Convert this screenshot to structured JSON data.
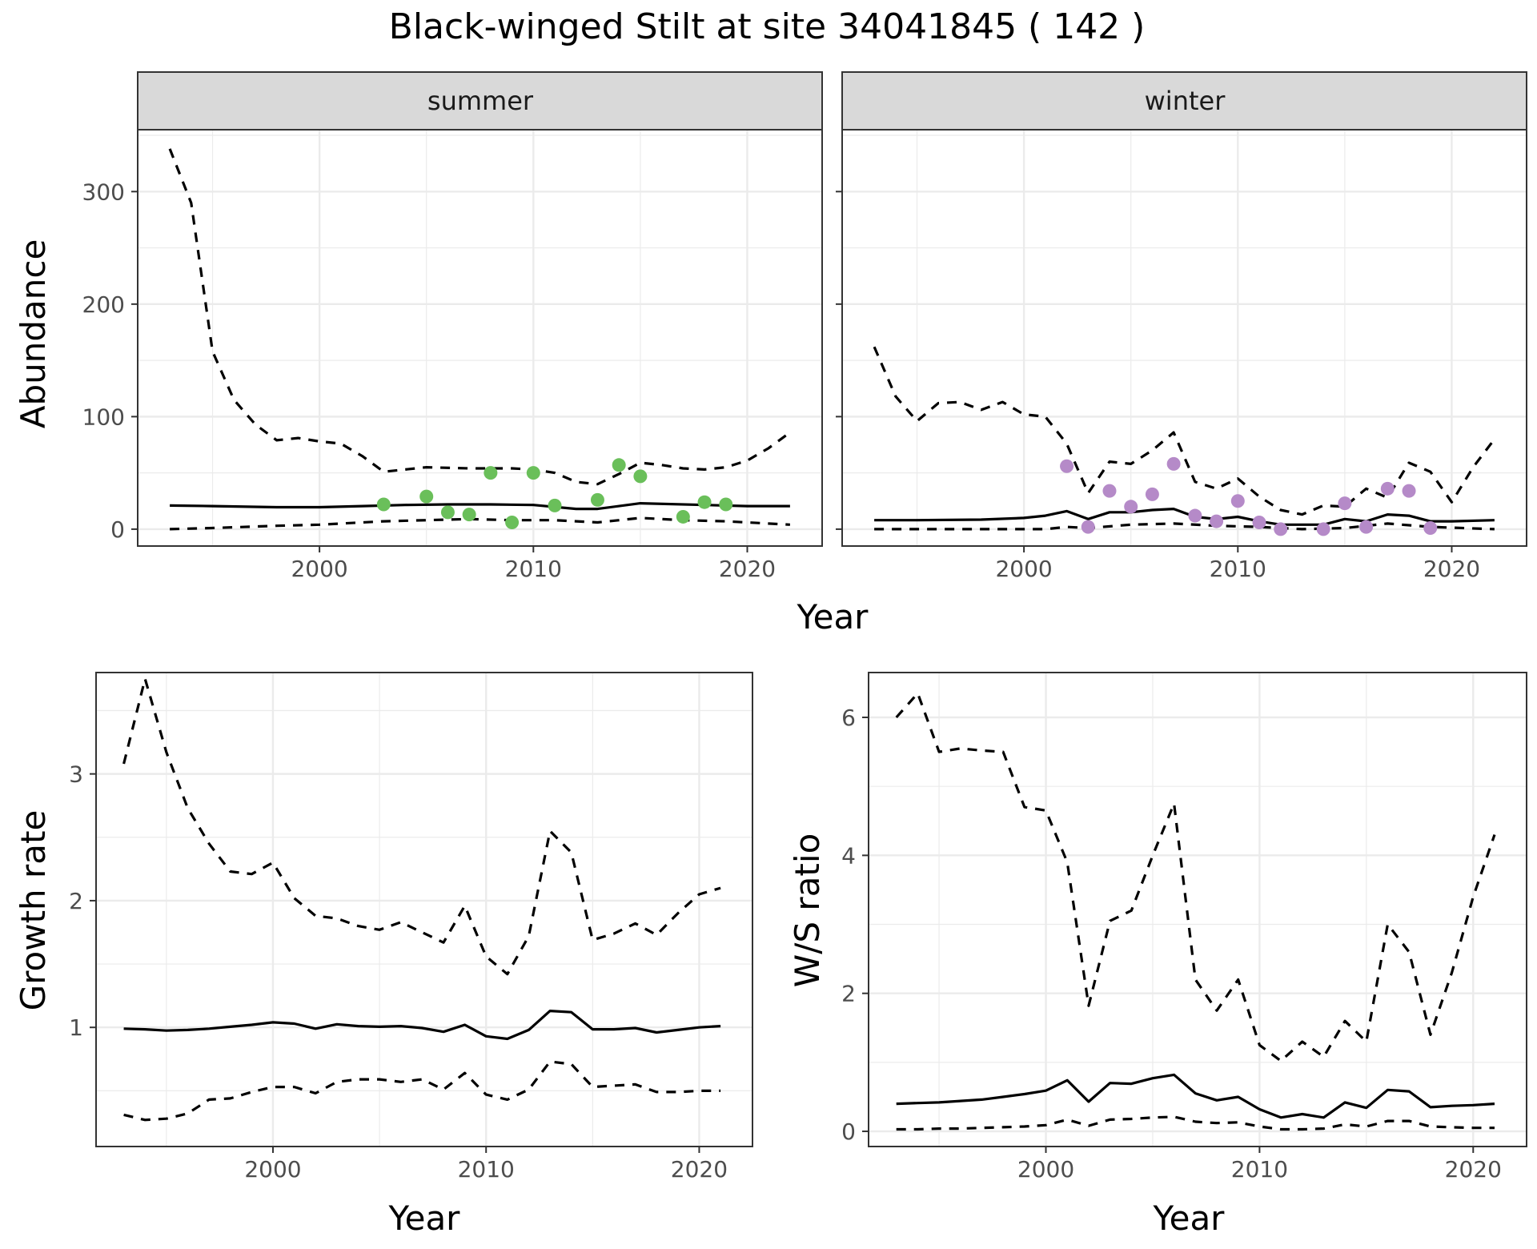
{
  "title": "Black-winged Stilt at site 34041845 ( 142 )",
  "colors": {
    "summer_points": "#6abf5a",
    "winter_points": "#b58ac8",
    "line": "#000000",
    "strip_fill": "#d9d9d9",
    "grid": "#ebebeb"
  },
  "chart_data": [
    {
      "type": "line",
      "panel": "summer",
      "strip_label": "summer",
      "xlabel": "Year",
      "ylabel": "Abundance",
      "xlim": [
        1991.5,
        2023.5
      ],
      "ylim": [
        -15,
        355
      ],
      "x_ticks": [
        2000,
        2010,
        2020
      ],
      "y_ticks": [
        0,
        100,
        200,
        300
      ],
      "grid": true,
      "series": [
        {
          "role": "mean",
          "style": "solid",
          "x": [
            1993,
            1995,
            1998,
            2000,
            2002,
            2004,
            2006,
            2008,
            2010,
            2012,
            2013,
            2015,
            2018,
            2020,
            2022
          ],
          "y": [
            21,
            20.5,
            19.5,
            19.5,
            20.5,
            21.5,
            22,
            22,
            21.5,
            18,
            18,
            23,
            21.5,
            20.5,
            20.5
          ]
        },
        {
          "role": "upper",
          "style": "dashed",
          "x": [
            1993,
            1994,
            1995,
            1996,
            1997,
            1998,
            1999,
            2000,
            2001,
            2002,
            2003,
            2005,
            2007,
            2009,
            2010,
            2011,
            2012,
            2013,
            2014,
            2015,
            2016,
            2017,
            2018,
            2019,
            2020,
            2021,
            2022
          ],
          "y": [
            338,
            290,
            158,
            115,
            93,
            79,
            81,
            78,
            76,
            65,
            51,
            55,
            54,
            54,
            53,
            50,
            42,
            40,
            49,
            59,
            57,
            54,
            53,
            55,
            61,
            72,
            86
          ]
        },
        {
          "role": "lower",
          "style": "dashed",
          "x": [
            1993,
            1995,
            1998,
            2000,
            2003,
            2005,
            2007,
            2009,
            2011,
            2013,
            2015,
            2017,
            2019,
            2022
          ],
          "y": [
            0,
            1,
            3,
            4,
            7,
            8,
            9,
            8,
            8,
            6,
            10,
            8,
            7,
            4
          ]
        }
      ],
      "points": {
        "x": [
          2003,
          2005,
          2006,
          2007,
          2008,
          2009,
          2010,
          2011,
          2013,
          2014,
          2015,
          2017,
          2018,
          2019
        ],
        "y": [
          22,
          29,
          15,
          13,
          50,
          6,
          50,
          21,
          26,
          57,
          47,
          11,
          24,
          22
        ]
      }
    },
    {
      "type": "line",
      "panel": "winter",
      "strip_label": "winter",
      "xlabel": "Year",
      "ylabel": "Abundance",
      "xlim": [
        1991.5,
        2023.5
      ],
      "ylim": [
        -15,
        355
      ],
      "x_ticks": [
        2000,
        2010,
        2020
      ],
      "y_ticks": [
        0,
        100,
        200,
        300
      ],
      "grid": true,
      "series": [
        {
          "role": "mean",
          "style": "solid",
          "x": [
            1993,
            1995,
            1998,
            2000,
            2001,
            2002,
            2003,
            2004,
            2005,
            2006,
            2007,
            2008,
            2009,
            2010,
            2011,
            2012,
            2013,
            2014,
            2015,
            2016,
            2017,
            2018,
            2019,
            2020,
            2022
          ],
          "y": [
            8,
            8,
            8.5,
            10,
            12,
            16,
            9,
            15,
            15,
            17,
            18,
            11,
            9,
            11,
            7,
            4,
            4,
            4,
            9,
            7,
            13,
            12,
            7,
            7,
            8
          ]
        },
        {
          "role": "upper",
          "style": "dashed",
          "x": [
            1993,
            1994,
            1995,
            1996,
            1997,
            1998,
            1999,
            2000,
            2001,
            2002,
            2003,
            2004,
            2005,
            2006,
            2007,
            2008,
            2009,
            2010,
            2011,
            2012,
            2013,
            2014,
            2015,
            2016,
            2017,
            2018,
            2019,
            2020,
            2021,
            2022
          ],
          "y": [
            162,
            118,
            96,
            112,
            113,
            106,
            113,
            102,
            100,
            76,
            32,
            60,
            58,
            70,
            86,
            42,
            36,
            45,
            29,
            17,
            13,
            21,
            20,
            36,
            28,
            59,
            51,
            24,
            55,
            80
          ]
        },
        {
          "role": "lower",
          "style": "dashed",
          "x": [
            1993,
            2001,
            2002,
            2003,
            2005,
            2007,
            2009,
            2011,
            2013,
            2015,
            2017,
            2019,
            2022
          ],
          "y": [
            0,
            0,
            2,
            1,
            4,
            5,
            3,
            2,
            0,
            1,
            5,
            2,
            0
          ]
        }
      ],
      "points": {
        "x": [
          2002,
          2003,
          2004,
          2005,
          2006,
          2007,
          2008,
          2009,
          2010,
          2011,
          2012,
          2014,
          2015,
          2016,
          2017,
          2018,
          2019
        ],
        "y": [
          56,
          2,
          34,
          20,
          31,
          58,
          12,
          7,
          25,
          6,
          0,
          0,
          23,
          2,
          36,
          34,
          1
        ]
      }
    },
    {
      "type": "line",
      "panel": "growth",
      "xlabel": "Year",
      "ylabel": "Growth rate",
      "xlim": [
        1991.7,
        2022.5
      ],
      "ylim": [
        0.06,
        3.8
      ],
      "x_ticks": [
        2000,
        2010,
        2020
      ],
      "y_ticks": [
        1,
        2,
        3
      ],
      "grid": true,
      "series": [
        {
          "role": "mean",
          "style": "solid",
          "x": [
            1993,
            1994,
            1995,
            1996,
            1997,
            1998,
            1999,
            2000,
            2001,
            2002,
            2003,
            2004,
            2005,
            2006,
            2007,
            2008,
            2009,
            2010,
            2011,
            2012,
            2013,
            2014,
            2015,
            2016,
            2017,
            2018,
            2019,
            2020,
            2021
          ],
          "y": [
            0.99,
            0.985,
            0.975,
            0.98,
            0.99,
            1.005,
            1.02,
            1.04,
            1.03,
            0.99,
            1.025,
            1.01,
            1.005,
            1.01,
            0.995,
            0.965,
            1.02,
            0.93,
            0.91,
            0.98,
            1.13,
            1.12,
            0.985,
            0.985,
            0.995,
            0.96,
            0.98,
            1.0,
            1.01
          ]
        },
        {
          "role": "upper",
          "style": "dashed",
          "x": [
            1993,
            1994,
            1995,
            1996,
            1997,
            1998,
            1999,
            2000,
            2001,
            2002,
            2003,
            2004,
            2005,
            2006,
            2007,
            2008,
            2009,
            2010,
            2011,
            2012,
            2013,
            2014,
            2015,
            2016,
            2017,
            2018,
            2019,
            2020,
            2021
          ],
          "y": [
            3.08,
            3.75,
            3.17,
            2.73,
            2.45,
            2.23,
            2.21,
            2.3,
            2.02,
            1.88,
            1.86,
            1.8,
            1.77,
            1.83,
            1.75,
            1.67,
            1.96,
            1.56,
            1.42,
            1.72,
            2.55,
            2.38,
            1.69,
            1.74,
            1.82,
            1.73,
            1.9,
            2.05,
            2.1
          ]
        },
        {
          "role": "lower",
          "style": "dashed",
          "x": [
            1993,
            1994,
            1995,
            1996,
            1997,
            1998,
            1999,
            2000,
            2001,
            2002,
            2003,
            2004,
            2005,
            2006,
            2007,
            2008,
            2009,
            2010,
            2011,
            2012,
            2013,
            2014,
            2015,
            2016,
            2017,
            2018,
            2019,
            2020,
            2021
          ],
          "y": [
            0.31,
            0.27,
            0.28,
            0.32,
            0.43,
            0.44,
            0.49,
            0.53,
            0.53,
            0.48,
            0.57,
            0.59,
            0.59,
            0.57,
            0.59,
            0.51,
            0.64,
            0.47,
            0.43,
            0.51,
            0.73,
            0.71,
            0.53,
            0.54,
            0.55,
            0.49,
            0.49,
            0.5,
            0.5
          ]
        }
      ]
    },
    {
      "type": "line",
      "panel": "ratio",
      "xlabel": "Year",
      "ylabel": "W/S ratio",
      "xlim": [
        1991.7,
        2022.5
      ],
      "ylim": [
        -0.22,
        6.65
      ],
      "x_ticks": [
        2000,
        2010,
        2020
      ],
      "y_ticks": [
        0,
        2,
        4,
        6
      ],
      "grid": true,
      "series": [
        {
          "role": "mean",
          "style": "solid",
          "x": [
            1993,
            1994,
            1995,
            1996,
            1997,
            1998,
            1999,
            2000,
            2001,
            2002,
            2003,
            2004,
            2005,
            2006,
            2007,
            2008,
            2009,
            2010,
            2011,
            2012,
            2013,
            2014,
            2015,
            2016,
            2017,
            2018,
            2019,
            2020,
            2021
          ],
          "y": [
            0.4,
            0.41,
            0.42,
            0.44,
            0.46,
            0.5,
            0.54,
            0.59,
            0.74,
            0.43,
            0.7,
            0.69,
            0.77,
            0.82,
            0.55,
            0.45,
            0.5,
            0.32,
            0.2,
            0.25,
            0.2,
            0.42,
            0.34,
            0.6,
            0.58,
            0.35,
            0.37,
            0.38,
            0.4
          ]
        },
        {
          "role": "upper",
          "style": "dashed",
          "x": [
            1993,
            1994,
            1995,
            1996,
            1997,
            1998,
            1999,
            2000,
            2001,
            2002,
            2003,
            2004,
            2005,
            2006,
            2007,
            2008,
            2009,
            2010,
            2011,
            2012,
            2013,
            2014,
            2015,
            2016,
            2017,
            2018,
            2019,
            2020,
            2021
          ],
          "y": [
            6.0,
            6.35,
            5.5,
            5.55,
            5.52,
            5.5,
            4.7,
            4.65,
            3.9,
            1.82,
            3.05,
            3.2,
            4.0,
            4.75,
            2.2,
            1.75,
            2.2,
            1.25,
            1.02,
            1.3,
            1.08,
            1.6,
            1.3,
            3.0,
            2.6,
            1.4,
            2.3,
            3.4,
            4.3
          ]
        },
        {
          "role": "lower",
          "style": "dashed",
          "x": [
            1993,
            1994,
            1995,
            1996,
            1997,
            1998,
            1999,
            2000,
            2001,
            2002,
            2003,
            2004,
            2005,
            2006,
            2007,
            2008,
            2009,
            2010,
            2011,
            2012,
            2013,
            2014,
            2015,
            2016,
            2017,
            2018,
            2019,
            2020,
            2021
          ],
          "y": [
            0.03,
            0.03,
            0.04,
            0.04,
            0.05,
            0.06,
            0.07,
            0.09,
            0.17,
            0.08,
            0.17,
            0.18,
            0.2,
            0.21,
            0.14,
            0.12,
            0.13,
            0.07,
            0.03,
            0.03,
            0.04,
            0.1,
            0.07,
            0.15,
            0.15,
            0.07,
            0.06,
            0.05,
            0.05
          ]
        }
      ]
    }
  ]
}
